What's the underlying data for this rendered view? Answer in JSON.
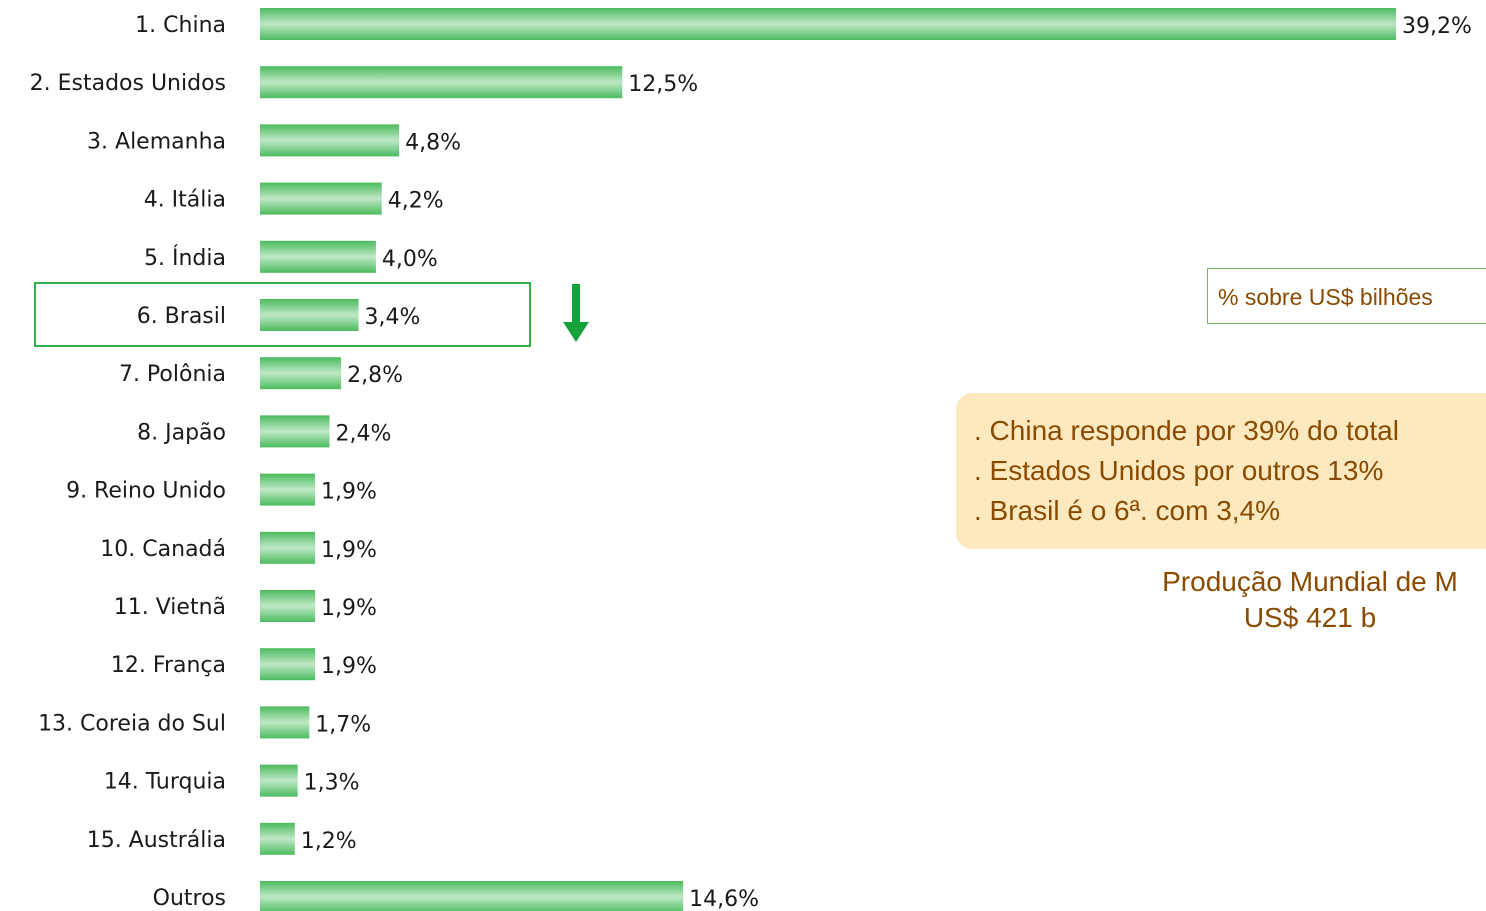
{
  "chart_data": {
    "type": "bar",
    "orientation": "horizontal",
    "categories": [
      "1. China",
      "2. Estados Unidos",
      "3. Alemanha",
      "4. Itália",
      "5. Índia",
      "6. Brasil",
      "7. Polônia",
      "8. Japão",
      "9. Reino Unido",
      "10. Canadá",
      "11. Vietnã",
      "12. França",
      "13. Coreia do Sul",
      "14. Turquia",
      "15. Austrália",
      "Outros"
    ],
    "values": [
      39.2,
      12.5,
      4.8,
      4.2,
      4.0,
      3.4,
      2.8,
      2.4,
      1.9,
      1.9,
      1.9,
      1.9,
      1.7,
      1.3,
      1.2,
      14.6
    ],
    "value_labels": [
      "39,2%",
      "12,5%",
      "4,8%",
      "4,2%",
      "4,0%",
      "3,4%",
      "2,8%",
      "2,4%",
      "1,9%",
      "1,9%",
      "1,9%",
      "1,9%",
      "1,7%",
      "1,3%",
      "1,2%",
      "14,6%"
    ],
    "highlighted_category": "6. Brasil",
    "bar_color": "#5cc46e",
    "highlight_color": "#2eb24a",
    "arrow_color": "#14a23c"
  },
  "legend_text": "% sobre US$ bilhões",
  "notes": [
    ". China responde por 39% do total",
    ". Estados Unidos por outros 13%",
    ". Brasil é o 6ª. com 3,4%"
  ],
  "production": {
    "line1": "Produção Mundial de M",
    "line2": "US$ 421 b"
  }
}
